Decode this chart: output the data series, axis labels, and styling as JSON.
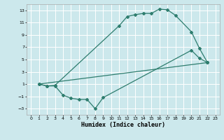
{
  "xlabel": "Humidex (Indice chaleur)",
  "bg_color": "#cce8ec",
  "grid_color": "#ffffff",
  "line_color": "#2e7d6e",
  "xlim": [
    -0.5,
    23.5
  ],
  "ylim": [
    -4,
    14
  ],
  "xticks": [
    0,
    1,
    2,
    3,
    4,
    5,
    6,
    7,
    8,
    9,
    10,
    11,
    12,
    13,
    14,
    15,
    16,
    17,
    18,
    19,
    20,
    21,
    22,
    23
  ],
  "yticks": [
    -3,
    -1,
    1,
    3,
    5,
    7,
    9,
    11,
    13
  ],
  "curve1_x": [
    1,
    2,
    3,
    11,
    12,
    13,
    14,
    15,
    16,
    17,
    18,
    20,
    21,
    22
  ],
  "curve1_y": [
    1,
    0.7,
    0.8,
    10.5,
    12.0,
    12.3,
    12.5,
    12.5,
    13.2,
    13.1,
    12.2,
    9.5,
    6.8,
    4.5
  ],
  "curve2_x": [
    1,
    22
  ],
  "curve2_y": [
    1,
    4.5
  ],
  "curve3_x": [
    1,
    2,
    3,
    4,
    5,
    6,
    7,
    8,
    9,
    20,
    21,
    22
  ],
  "curve3_y": [
    1,
    0.7,
    0.7,
    -0.8,
    -1.3,
    -1.5,
    -1.5,
    -3.0,
    -1.2,
    6.5,
    5.2,
    4.5
  ]
}
